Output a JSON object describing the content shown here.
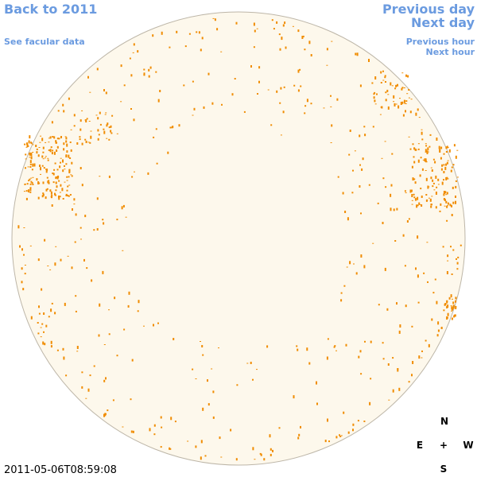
{
  "nav": {
    "back": "Back to 2011",
    "facular": "See facular data",
    "previous_day": "Previous day",
    "next_day": "Next day",
    "previous_hour": "Previous hour",
    "next_hour": "Next hour"
  },
  "timestamp": "2011-05-06T08:59:08",
  "compass": {
    "north": "N",
    "east": "E",
    "center": "+",
    "west": "W",
    "south": "S"
  }
}
